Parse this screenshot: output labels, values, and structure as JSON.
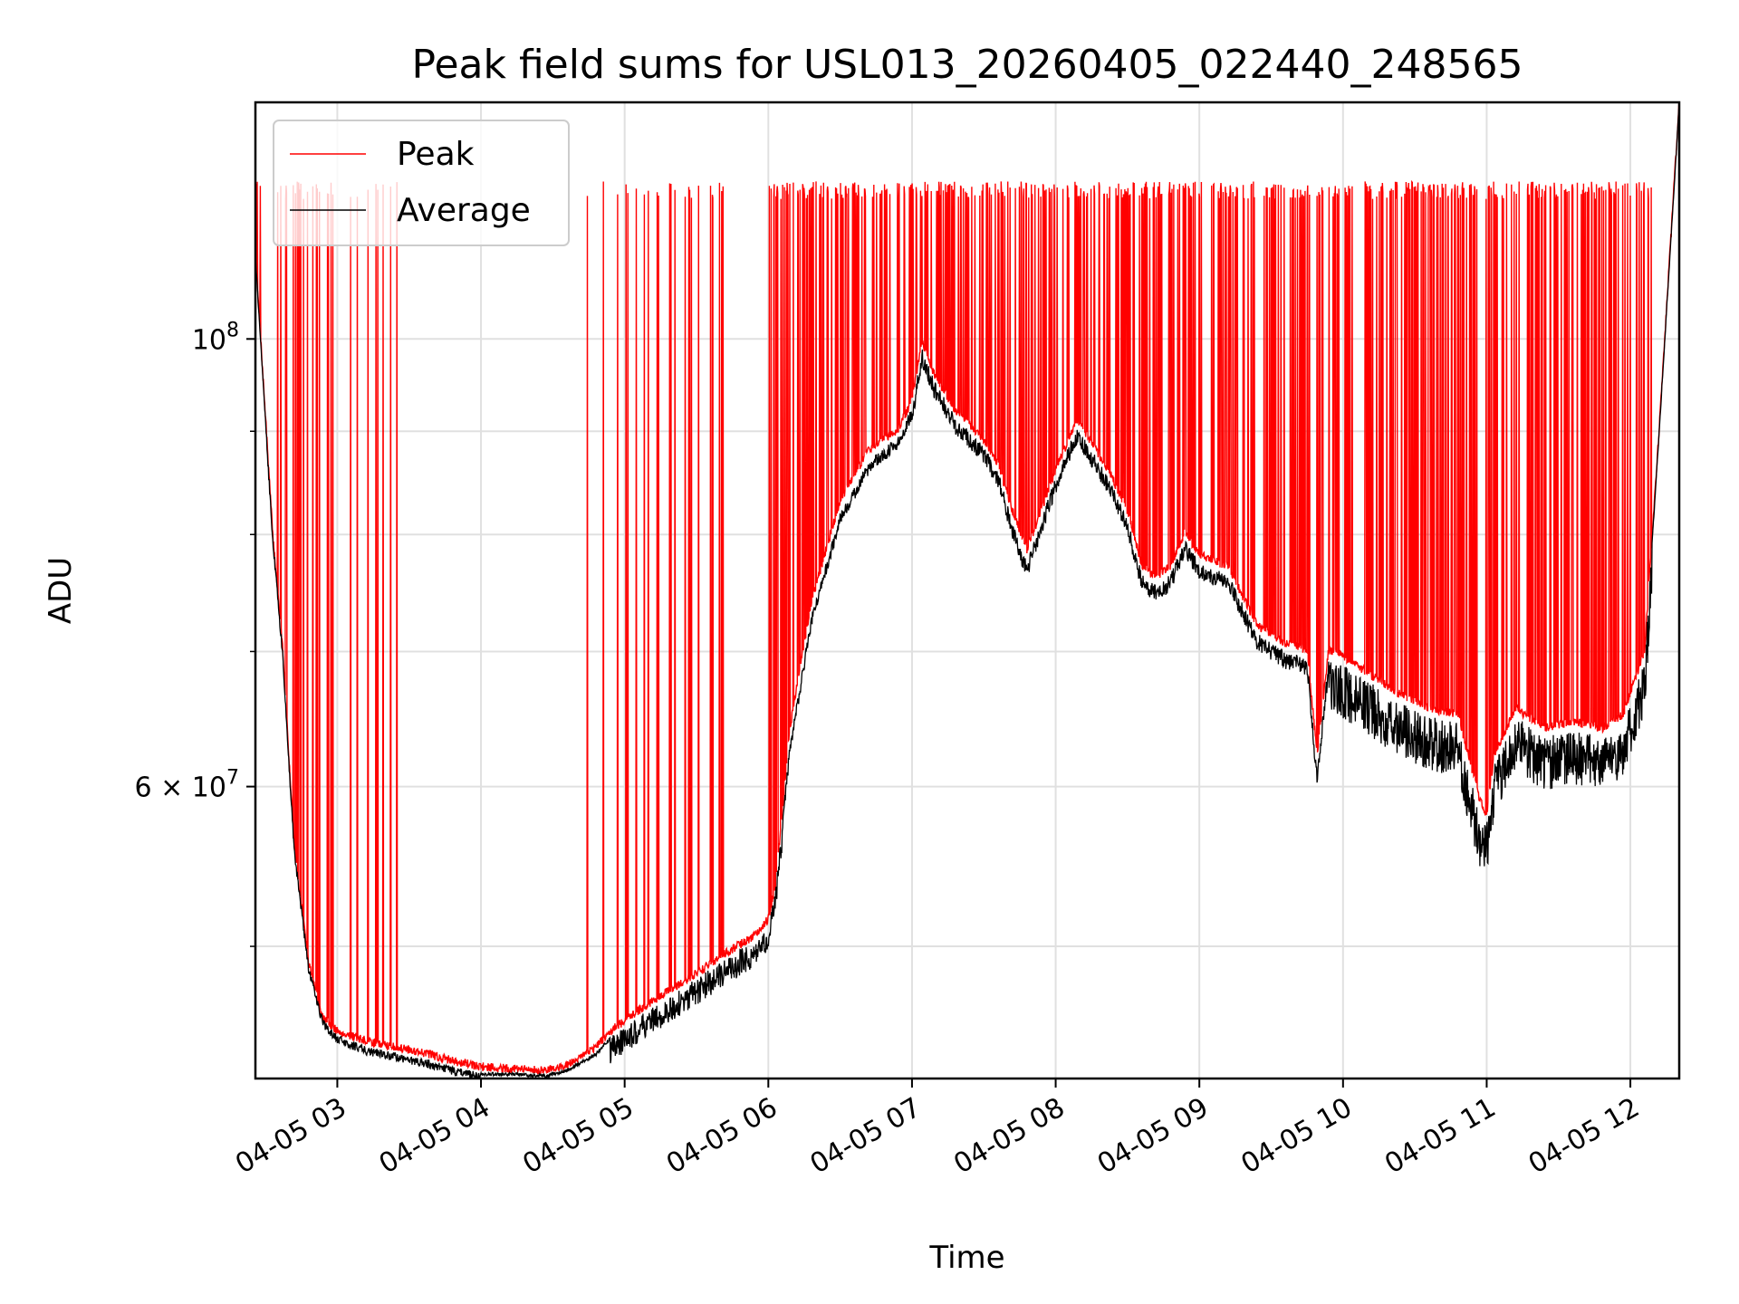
{
  "chart_data": {
    "type": "line",
    "title": "Peak field sums for USL013_20260405_022440_248565",
    "xlabel": "Time",
    "ylabel": "ADU",
    "yscale": "log",
    "grid": true,
    "legend_position": "top-left",
    "x_tick_labels": [
      "04-05 03",
      "04-05 04",
      "04-05 05",
      "04-05 06",
      "04-05 07",
      "04-05 08",
      "04-05 09",
      "04-05 10",
      "04-05 11",
      "04-05 12"
    ],
    "x_tick_hours": [
      3,
      4,
      5,
      6,
      7,
      8,
      9,
      10,
      11,
      12
    ],
    "x_range_hours": [
      2.43,
      12.34
    ],
    "ylim": [
      43000000,
      131000000
    ],
    "y_major_ticks": [
      {
        "value": 100000000,
        "mantissa": "",
        "base": "10",
        "exponent": "8"
      },
      {
        "value": 60000000,
        "mantissa": "6 × ",
        "base": "10",
        "exponent": "7"
      }
    ],
    "y_minor_ticks": [
      50000000,
      70000000,
      80000000,
      90000000
    ],
    "peak_saturation_level": 118500000,
    "series": [
      {
        "name": "Peak",
        "color": "#ff0000",
        "x_hours": [
          2.43,
          2.55,
          2.62,
          2.7,
          2.8,
          2.9,
          3.0,
          3.2,
          3.4,
          3.6,
          3.8,
          4.0,
          4.2,
          4.45,
          4.6,
          4.8,
          4.9,
          5.1,
          5.3,
          5.5,
          5.7,
          5.9,
          6.0,
          6.05,
          6.15,
          6.3,
          6.5,
          6.7,
          6.9,
          7.0,
          7.07,
          7.15,
          7.3,
          7.5,
          7.6,
          7.7,
          7.8,
          8.0,
          8.15,
          8.3,
          8.4,
          8.5,
          8.6,
          8.7,
          8.8,
          8.9,
          9.0,
          9.2,
          9.4,
          9.6,
          9.75,
          9.82,
          9.9,
          10.0,
          10.2,
          10.4,
          10.6,
          10.8,
          10.95,
          11.0,
          11.05,
          11.2,
          11.4,
          11.6,
          11.8,
          11.95,
          12.1,
          12.2,
          12.34
        ],
        "y": [
          110000000,
          80000000,
          70000000,
          56000000,
          49000000,
          46000000,
          45300000,
          44800000,
          44500000,
          44200000,
          43800000,
          43500000,
          43400000,
          43300000,
          43600000,
          44500000,
          45300000,
          46400000,
          47400000,
          48400000,
          49500000,
          50500000,
          51500000,
          53500000,
          64000000,
          74000000,
          83000000,
          88000000,
          90000000,
          93000000,
          99500000,
          96000000,
          92000000,
          89000000,
          86500000,
          82000000,
          78500000,
          86000000,
          91000000,
          87500000,
          85000000,
          82000000,
          77000000,
          76000000,
          77000000,
          80000000,
          78000000,
          77000000,
          72000000,
          70500000,
          70000000,
          62000000,
          70000000,
          69500000,
          68000000,
          66500000,
          65500000,
          65000000,
          59000000,
          58000000,
          62000000,
          65500000,
          64000000,
          64500000,
          64000000,
          65000000,
          70000000,
          90000000,
          131000000
        ]
      },
      {
        "name": "Average",
        "color": "#000000",
        "x_hours": [
          2.43,
          2.55,
          2.62,
          2.7,
          2.8,
          2.9,
          3.0,
          3.2,
          3.4,
          3.6,
          3.8,
          4.0,
          4.2,
          4.45,
          4.6,
          4.8,
          4.9,
          5.1,
          5.3,
          5.5,
          5.7,
          5.9,
          6.0,
          6.05,
          6.15,
          6.3,
          6.5,
          6.7,
          6.9,
          7.0,
          7.07,
          7.15,
          7.3,
          7.5,
          7.6,
          7.7,
          7.8,
          8.0,
          8.15,
          8.3,
          8.4,
          8.5,
          8.6,
          8.7,
          8.8,
          8.9,
          9.0,
          9.2,
          9.4,
          9.6,
          9.75,
          9.82,
          9.9,
          10.0,
          10.2,
          10.4,
          10.6,
          10.8,
          10.95,
          11.0,
          11.05,
          11.2,
          11.4,
          11.6,
          11.8,
          11.95,
          12.1,
          12.2,
          12.34
        ],
        "y": [
          110000000,
          80000000,
          70000000,
          56000000,
          49000000,
          46000000,
          45200000,
          44600000,
          44300000,
          44000000,
          43600000,
          43300000,
          43300000,
          43200000,
          43500000,
          44300000,
          45100000,
          46200000,
          47200000,
          48200000,
          49300000,
          50300000,
          51300000,
          53300000,
          63000000,
          73000000,
          82000000,
          87000000,
          89500000,
          92500000,
          99000000,
          95500000,
          91500000,
          88500000,
          86000000,
          81000000,
          77500000,
          85500000,
          90500000,
          87000000,
          84500000,
          81500000,
          76500000,
          75500000,
          76500000,
          79500000,
          77500000,
          76500000,
          71500000,
          70000000,
          69500000,
          61000000,
          69500000,
          69000000,
          67500000,
          66000000,
          65000000,
          64500000,
          58000000,
          57500000,
          61500000,
          65000000,
          63500000,
          64000000,
          63500000,
          64500000,
          69500000,
          90000000,
          131000000
        ]
      }
    ]
  }
}
